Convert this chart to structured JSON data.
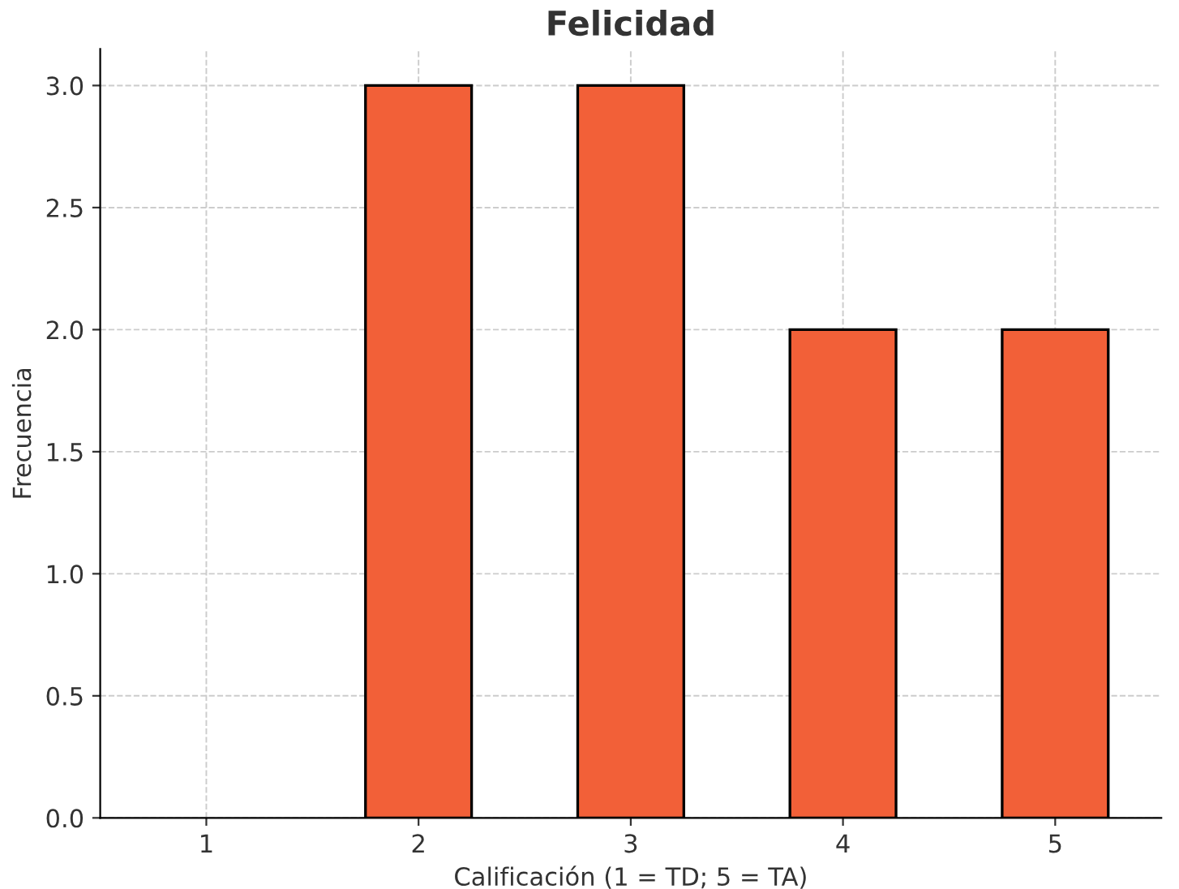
{
  "chart_data": {
    "type": "bar",
    "title": "Felicidad",
    "xlabel": "Calificación (1 = TD; 5 = TA)",
    "ylabel": "Frecuencia",
    "categories": [
      "1",
      "2",
      "3",
      "4",
      "5"
    ],
    "values": [
      0,
      3,
      3,
      2,
      2
    ],
    "color": "#f26038",
    "ylim": [
      0,
      3.15
    ],
    "yticks": [
      {
        "value": 0,
        "label": "0.0"
      },
      {
        "value": 0.5,
        "label": "0.5"
      },
      {
        "value": 1,
        "label": "1.0"
      },
      {
        "value": 1.5,
        "label": "1.5"
      },
      {
        "value": 2,
        "label": "2.0"
      },
      {
        "value": 2.5,
        "label": "2.5"
      },
      {
        "value": 3,
        "label": "3.0"
      }
    ],
    "grid": true,
    "legend": false
  }
}
